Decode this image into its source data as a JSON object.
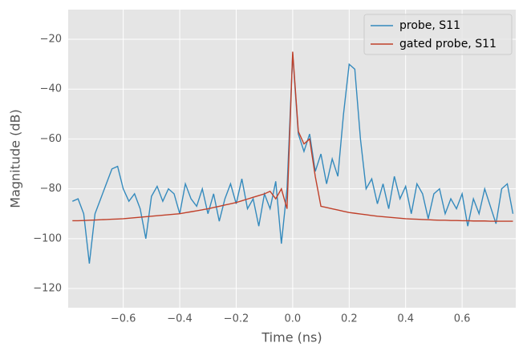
{
  "chart_data": {
    "type": "line",
    "xlabel": "Time (ns)",
    "ylabel": "Magnitude (dB)",
    "x": [
      -0.78,
      -0.76,
      -0.74,
      -0.72,
      -0.7,
      -0.68,
      -0.66,
      -0.64,
      -0.62,
      -0.6,
      -0.58,
      -0.56,
      -0.54,
      -0.52,
      -0.5,
      -0.48,
      -0.46,
      -0.44,
      -0.42,
      -0.4,
      -0.38,
      -0.36,
      -0.34,
      -0.32,
      -0.3,
      -0.28,
      -0.26,
      -0.24,
      -0.22,
      -0.2,
      -0.18,
      -0.16,
      -0.14,
      -0.12,
      -0.1,
      -0.08,
      -0.06,
      -0.04,
      -0.02,
      0,
      0.02,
      0.04,
      0.06,
      0.08,
      0.1,
      0.12,
      0.14,
      0.16,
      0.18,
      0.2,
      0.22,
      0.24,
      0.26,
      0.28,
      0.3,
      0.32,
      0.34,
      0.36,
      0.38,
      0.4,
      0.42,
      0.44,
      0.46,
      0.48,
      0.5,
      0.52,
      0.54,
      0.56,
      0.58,
      0.6,
      0.62,
      0.64,
      0.66,
      0.68,
      0.7,
      0.72,
      0.74,
      0.76,
      0.78
    ],
    "series": [
      {
        "name": "probe, S11",
        "color": "#348abd",
        "values": [
          -85,
          -84,
          -90,
          -110,
          -90,
          -84,
          -78,
          -72,
          -71,
          -80,
          -85,
          -82,
          -88,
          -100,
          -83,
          -79,
          -85,
          -80,
          -82,
          -90,
          -78,
          -84,
          -87,
          -80,
          -90,
          -82,
          -93,
          -84,
          -78,
          -86,
          -76,
          -88,
          -84,
          -95,
          -82,
          -88,
          -77,
          -102,
          -80,
          -26,
          -58,
          -65,
          -58,
          -73,
          -66,
          -78,
          -68,
          -75,
          -50,
          -30,
          -32,
          -60,
          -80,
          -76,
          -86,
          -78,
          -88,
          -75,
          -84,
          -79,
          -90,
          -78,
          -82,
          -92,
          -82,
          -80,
          -90,
          -84,
          -88,
          -82,
          -95,
          -84,
          -90,
          -80,
          -87,
          -94,
          -80,
          -78,
          -90
        ]
      },
      {
        "name": "gated probe, S11",
        "color": "#c0402a",
        "values": [
          -92.8,
          -92.8,
          -92.7,
          -92.6,
          -92.5,
          -92.4,
          -92.3,
          -92.2,
          -92.1,
          -92,
          -91.8,
          -91.6,
          -91.4,
          -91.2,
          -91,
          -90.8,
          -90.6,
          -90.4,
          -90.2,
          -90,
          -89.6,
          -89.2,
          -88.8,
          -88.4,
          -88,
          -87.5,
          -87,
          -86.5,
          -86,
          -85.5,
          -84.8,
          -84.1,
          -83.4,
          -82.7,
          -82,
          -81,
          -84,
          -80,
          -88,
          -25,
          -57,
          -62,
          -60,
          -75,
          -87,
          -87.5,
          -88,
          -88.5,
          -89,
          -89.5,
          -89.8,
          -90.1,
          -90.4,
          -90.7,
          -91,
          -91.2,
          -91.4,
          -91.6,
          -91.8,
          -92,
          -92.1,
          -92.2,
          -92.3,
          -92.4,
          -92.5,
          -92.6,
          -92.6,
          -92.7,
          -92.7,
          -92.8,
          -92.8,
          -92.9,
          -92.9,
          -92.9,
          -93,
          -93,
          -93,
          -93,
          -93
        ]
      }
    ],
    "xlim": [
      -0.795,
      0.79
    ],
    "ylim": [
      -127.7,
      -8.1
    ],
    "xticks": [
      {
        "value": -0.6,
        "label": "−0.6"
      },
      {
        "value": -0.4,
        "label": "−0.4"
      },
      {
        "value": -0.2,
        "label": "−0.2"
      },
      {
        "value": 0,
        "label": "0.0"
      },
      {
        "value": 0.2,
        "label": "0.2"
      },
      {
        "value": 0.4,
        "label": "0.4"
      },
      {
        "value": 0.6,
        "label": "0.6"
      }
    ],
    "yticks": [
      {
        "value": -120,
        "label": "−120"
      },
      {
        "value": -100,
        "label": "−100"
      },
      {
        "value": -80,
        "label": "−80"
      },
      {
        "value": -60,
        "label": "−60"
      },
      {
        "value": -40,
        "label": "−40"
      },
      {
        "value": -20,
        "label": "−20"
      }
    ],
    "grid": true,
    "legend": "upper right"
  }
}
